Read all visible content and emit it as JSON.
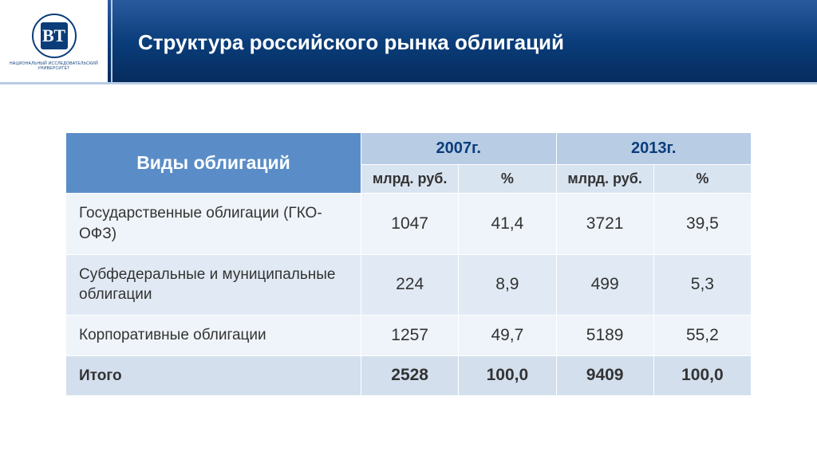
{
  "logo": {
    "letters": "ВТ",
    "subtitle": "НАЦИОНАЛЬНЫЙ ИССЛЕДОВАТЕЛЬСКИЙ УНИВЕРСИТЕТ"
  },
  "title": "Структура российского рынка облигаций",
  "table": {
    "columns": [
      "Виды облигаций",
      "2007г.",
      "2013г."
    ],
    "subcolumns": [
      "млрд. руб.",
      "%",
      "млрд. руб.",
      "%"
    ],
    "rows": [
      {
        "label": "Государственные облигации (ГКО-ОФЗ)",
        "v1": "1047",
        "p1": "41,4",
        "v2": "3721",
        "p2": "39,5"
      },
      {
        "label": "Субфедеральные и муниципальные облигации",
        "v1": "224",
        "p1": "8,9",
        "v2": "499",
        "p2": "5,3"
      },
      {
        "label": "Корпоративные облигации",
        "v1": "1257",
        "p1": "49,7",
        "v2": "5189",
        "p2": "55,2"
      }
    ],
    "total": {
      "label": "Итого",
      "v1": "2528",
      "p1": "100,0",
      "v2": "9409",
      "p2": "100,0"
    }
  },
  "colors": {
    "header_gradient_start": "#2a5a9e",
    "header_gradient_end": "#062b5c",
    "th_main_bg": "#5a8dc7",
    "th_year_bg": "#b8cce4",
    "th_sub_bg": "#d9e4f1",
    "row_odd_bg": "#eff4fa",
    "row_even_bg": "#e1eaf4",
    "row_total_bg": "#d3dfed"
  }
}
